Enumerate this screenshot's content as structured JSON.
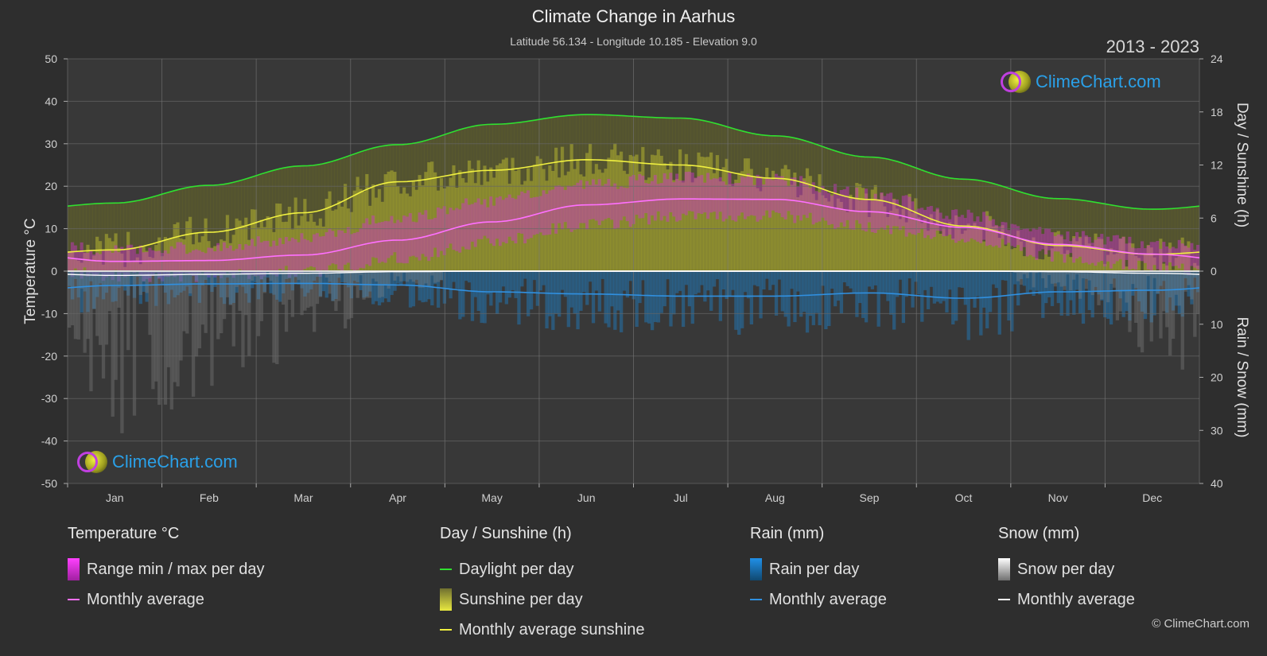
{
  "header": {
    "title": "Climate Change in Aarhus",
    "subtitle": "Latitude 56.134 - Longitude 10.185 - Elevation 9.0",
    "period": "2013 - 2023"
  },
  "logo_text": "ClimeChart.com",
  "copyright": "© ClimeChart.com",
  "colors": {
    "background": "#2e2e2e",
    "temp_range": "#d030d0",
    "temp_avg": "#ff70ff",
    "daylight": "#30e030",
    "sunshine": "#c8c830",
    "sunshine_avg": "#f0f040",
    "rain": "#2080c8",
    "rain_avg": "#3090e0",
    "snow": "#888888",
    "snow_avg": "#ffffff",
    "logo_text": "#2aa0e8"
  },
  "chart_data": {
    "type": "line",
    "categories": [
      "Jan",
      "Feb",
      "Mar",
      "Apr",
      "May",
      "Jun",
      "Jul",
      "Aug",
      "Sep",
      "Oct",
      "Nov",
      "Dec"
    ],
    "axes": {
      "left": {
        "label": "Temperature °C",
        "ticks": [
          "50",
          "40",
          "30",
          "20",
          "10",
          "0",
          "-10",
          "-20",
          "-30",
          "-40",
          "-50"
        ],
        "range": [
          -50,
          50
        ]
      },
      "right_top": {
        "label": "Day / Sunshine (h)",
        "ticks": [
          "24",
          "18",
          "12",
          "6",
          "0"
        ],
        "range": [
          0,
          24
        ]
      },
      "right_bottom": {
        "label": "Rain / Snow (mm)",
        "ticks": [
          "0",
          "10",
          "20",
          "30",
          "40"
        ],
        "range": [
          0,
          40
        ]
      }
    },
    "grid": true,
    "series": [
      {
        "name": "Daylight per day",
        "axis": "sunshine_h",
        "values": [
          7.7,
          9.7,
          11.9,
          14.3,
          16.6,
          17.7,
          17.3,
          15.3,
          12.9,
          10.4,
          8.2,
          7.0
        ]
      },
      {
        "name": "Monthly average sunshine",
        "axis": "sunshine_h",
        "values": [
          2.4,
          4.4,
          6.6,
          10.1,
          11.4,
          12.6,
          12.0,
          10.5,
          8.1,
          5.1,
          2.9,
          1.9
        ]
      },
      {
        "name": "Monthly average",
        "group": "Temperature °C",
        "axis": "temperature_c",
        "values": [
          2.3,
          2.5,
          3.8,
          7.3,
          11.6,
          15.6,
          17.0,
          16.9,
          14.0,
          10.3,
          6.3,
          4.0
        ]
      },
      {
        "name": "Range min / max per day",
        "group": "Temperature °C",
        "axis": "temperature_c",
        "min": [
          -1.0,
          -1.2,
          0.0,
          3.0,
          7.0,
          11.0,
          13.0,
          13.0,
          10.5,
          7.5,
          3.5,
          1.0
        ],
        "max": [
          5.0,
          5.5,
          8.0,
          12.5,
          16.5,
          20.5,
          22.0,
          21.5,
          18.0,
          13.0,
          8.5,
          6.5
        ]
      },
      {
        "name": "Monthly average",
        "group": "Rain (mm)",
        "axis": "rain_mm",
        "values": [
          2.7,
          2.4,
          2.3,
          2.6,
          3.9,
          4.3,
          4.7,
          4.7,
          4.1,
          5.1,
          3.9,
          3.6
        ]
      },
      {
        "name": "Monthly average",
        "group": "Snow (mm)",
        "axis": "rain_mm",
        "values": [
          0.8,
          0.6,
          0.4,
          0.1,
          0.0,
          0.0,
          0.0,
          0.0,
          0.0,
          0.0,
          0.1,
          0.4
        ]
      }
    ]
  },
  "legend": {
    "temperature": {
      "title": "Temperature °C",
      "items": [
        "Range min / max per day",
        "Monthly average"
      ]
    },
    "sunshine": {
      "title": "Day / Sunshine (h)",
      "items": [
        "Daylight per day",
        "Sunshine per day",
        "Monthly average sunshine"
      ]
    },
    "rain": {
      "title": "Rain (mm)",
      "items": [
        "Rain per day",
        "Monthly average"
      ]
    },
    "snow": {
      "title": "Snow (mm)",
      "items": [
        "Snow per day",
        "Monthly average"
      ]
    }
  }
}
